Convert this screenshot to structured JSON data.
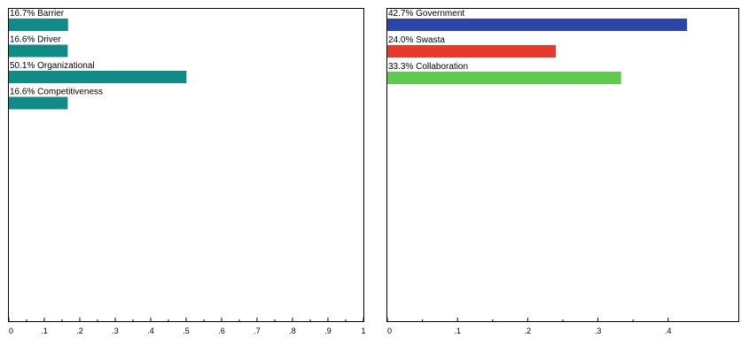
{
  "chart_data": [
    {
      "type": "bar",
      "orientation": "horizontal",
      "categories": [
        "Barrier",
        "Driver",
        "Organizational",
        "Competitiveness"
      ],
      "values": [
        0.167,
        0.166,
        0.501,
        0.166
      ],
      "bar_labels": [
        "16.7% Barrier",
        "16.6% Driver",
        "50.1% Organizational",
        "16.6% Competitiveness"
      ],
      "colors": [
        "#128a86",
        "#128a86",
        "#128a86",
        "#128a86"
      ],
      "xlim": [
        0,
        1
      ],
      "xticks": [
        0,
        0.1,
        0.2,
        0.3,
        0.4,
        0.5,
        0.6,
        0.7,
        0.8,
        0.9,
        1
      ],
      "xtick_labels": [
        "0",
        ".1",
        ".2",
        ".3",
        ".4",
        ".5",
        ".6",
        ".7",
        ".8",
        ".9",
        "1"
      ],
      "grid": false
    },
    {
      "type": "bar",
      "orientation": "horizontal",
      "categories": [
        "Government",
        "Swasta",
        "Collaboration"
      ],
      "values": [
        0.427,
        0.24,
        0.333
      ],
      "bar_labels": [
        "42.7% Government",
        "24.0% Swasta",
        "33.3% Collaboration"
      ],
      "colors": [
        "#2b45a8",
        "#e53a2c",
        "#5ecb4f"
      ],
      "xlim": [
        0,
        0.5
      ],
      "xticks": [
        0,
        0.1,
        0.2,
        0.3,
        0.4
      ],
      "xtick_labels": [
        "0",
        ".1",
        ".2",
        ".3",
        ".4"
      ],
      "grid": false
    }
  ]
}
